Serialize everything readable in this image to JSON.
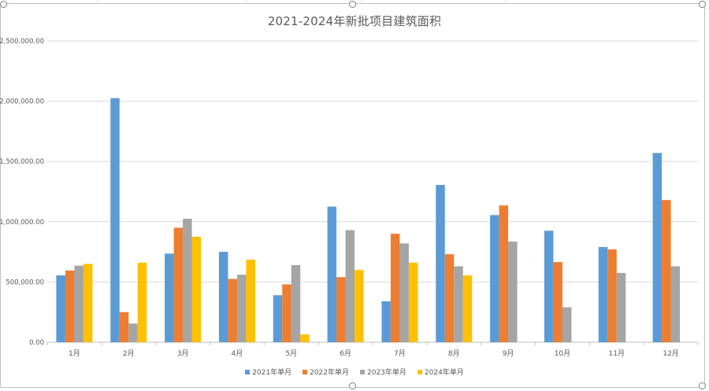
{
  "chart_data": {
    "type": "bar",
    "title": "2021-2024年新批项目建筑面积",
    "xlabel": "",
    "ylabel": "",
    "ylim": [
      0,
      2500000
    ],
    "yticks": [
      "0.00",
      "500,000.00",
      "1,000,000.00",
      "1,500,000.00",
      "2,000,000.00",
      "2,500,000.00"
    ],
    "grid": true,
    "legend_position": "bottom",
    "categories": [
      "1月",
      "2月",
      "3月",
      "4月",
      "5月",
      "6月",
      "7月",
      "8月",
      "9月",
      "10月",
      "11月",
      "12月"
    ],
    "series": [
      {
        "name": "2021年单月",
        "color": "#5b9bd5",
        "values": [
          555000,
          2025000,
          735000,
          750000,
          390000,
          1125000,
          340000,
          1305000,
          1055000,
          925000,
          790000,
          1570000
        ]
      },
      {
        "name": "2022年单月",
        "color": "#ed7d31",
        "values": [
          595000,
          250000,
          950000,
          525000,
          480000,
          540000,
          900000,
          730000,
          1135000,
          665000,
          770000,
          1180000
        ]
      },
      {
        "name": "2023年单月",
        "color": "#a5a5a5",
        "values": [
          635000,
          155000,
          1025000,
          560000,
          640000,
          930000,
          820000,
          630000,
          835000,
          290000,
          575000,
          630000
        ]
      },
      {
        "name": "2024年单月",
        "color": "#ffc000",
        "values": [
          650000,
          660000,
          875000,
          685000,
          65000,
          600000,
          660000,
          555000,
          null,
          null,
          null,
          null
        ]
      }
    ]
  }
}
